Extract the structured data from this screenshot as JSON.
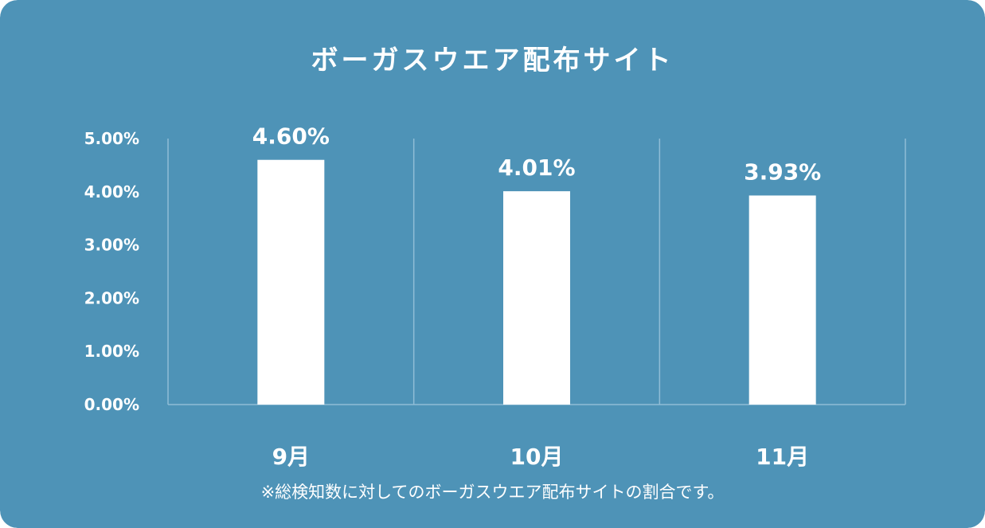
{
  "colors": {
    "background": "#4e93b7",
    "bar": "#ffffff",
    "grid": "#8fbdd6",
    "text": "#ffffff"
  },
  "chart_data": {
    "type": "bar",
    "title": "ボーガスウエア配布サイト",
    "categories": [
      "9月",
      "10月",
      "11月"
    ],
    "values": [
      4.6,
      4.01,
      3.93
    ],
    "value_labels": [
      "4.60%",
      "4.01%",
      "3.93%"
    ],
    "ylim": [
      0,
      5
    ],
    "yticks": [
      5,
      4,
      3,
      2,
      1,
      0
    ],
    "ytick_labels": [
      "5.00%",
      "4.00%",
      "3.00%",
      "2.00%",
      "1.00%",
      "0.00%"
    ],
    "grid": "vertical separators",
    "legend": "none"
  },
  "footnote": "※総検知数に対してのボーガスウエア配布サイトの割合です。"
}
